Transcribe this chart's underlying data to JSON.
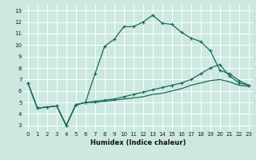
{
  "title": "",
  "xlabel": "Humidex (Indice chaleur)",
  "bg_color": "#cce8e0",
  "grid_color": "#ffffff",
  "line_color": "#1a6b5a",
  "xlim": [
    -0.5,
    23.5
  ],
  "ylim": [
    2.5,
    13.5
  ],
  "xticks": [
    0,
    1,
    2,
    3,
    4,
    5,
    6,
    7,
    8,
    9,
    10,
    11,
    12,
    13,
    14,
    15,
    16,
    17,
    18,
    19,
    20,
    21,
    22,
    23
  ],
  "yticks": [
    3,
    4,
    5,
    6,
    7,
    8,
    9,
    10,
    11,
    12,
    13
  ],
  "line1_x": [
    0,
    1,
    2,
    3,
    4,
    5,
    6,
    7,
    8,
    9,
    10,
    11,
    12,
    13,
    14,
    15,
    16,
    17,
    18,
    19,
    20,
    21,
    22,
    23
  ],
  "line1_y": [
    6.7,
    4.5,
    4.6,
    4.7,
    3.0,
    4.8,
    5.0,
    7.5,
    9.9,
    10.5,
    11.6,
    11.6,
    12.0,
    12.6,
    11.9,
    11.8,
    11.1,
    10.6,
    10.3,
    9.5,
    7.8,
    7.5,
    6.9,
    6.5
  ],
  "line2_x": [
    0,
    1,
    2,
    3,
    4,
    5,
    6,
    7,
    8,
    9,
    10,
    11,
    12,
    13,
    14,
    15,
    16,
    17,
    18,
    19,
    20,
    21,
    22,
    23
  ],
  "line2_y": [
    6.7,
    4.5,
    4.6,
    4.7,
    3.0,
    4.8,
    5.0,
    5.1,
    5.2,
    5.3,
    5.5,
    5.7,
    5.9,
    6.1,
    6.3,
    6.5,
    6.7,
    7.0,
    7.5,
    8.0,
    8.3,
    7.3,
    6.7,
    6.5
  ],
  "line3_x": [
    0,
    1,
    2,
    3,
    4,
    5,
    6,
    7,
    8,
    9,
    10,
    11,
    12,
    13,
    14,
    15,
    16,
    17,
    18,
    19,
    20,
    21,
    22,
    23
  ],
  "line3_y": [
    6.7,
    4.5,
    4.6,
    4.7,
    3.0,
    4.8,
    5.0,
    5.0,
    5.1,
    5.2,
    5.3,
    5.4,
    5.5,
    5.7,
    5.8,
    6.0,
    6.2,
    6.5,
    6.7,
    6.9,
    7.0,
    6.8,
    6.5,
    6.4
  ],
  "xlabel_fontsize": 6,
  "tick_fontsize": 5
}
